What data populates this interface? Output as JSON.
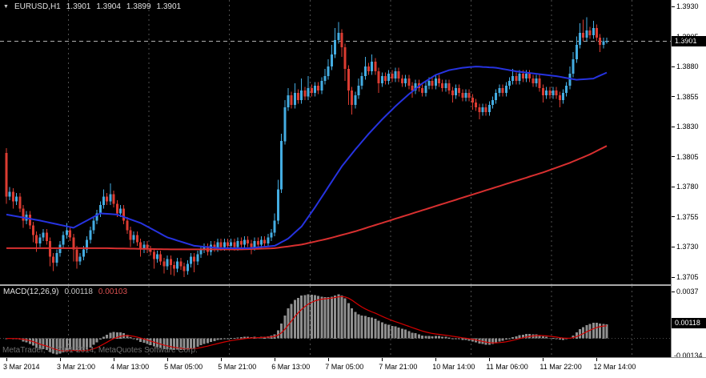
{
  "header": {
    "symbol_timeframe": "EURUSD,H1"
  },
  "icons": {
    "collapse_marker": "▼"
  },
  "watermark": {
    "text": "MetaTrader, © 2001-2014, MetaQuotes Software Corp."
  },
  "colors": {
    "background": "#000000",
    "scale_bg": "#ffffff",
    "scale_text": "#000000",
    "bull": "#44ade2",
    "bear": "#dc3c32",
    "ma_fast": "#2633e0",
    "ma_slow": "#d83030",
    "current_price_line": "#b0b0b0",
    "separator": "#4f4f4f",
    "histogram": "#8f8f8f",
    "signal": "#d40000",
    "highlight_bg": "#000000",
    "highlight_text": "#ffffff",
    "panel_border": "#8c8c8c",
    "watermark": "#6f6f6f",
    "chart_text": "#e2e2e2"
  },
  "chart_data": {
    "type": "candlestick",
    "symbol": "EURUSD",
    "timeframe": "H1",
    "quote": {
      "open": "1.3901",
      "high": "1.3904",
      "low": "1.3899",
      "close": "1.3901"
    },
    "price_axis": {
      "min": 1.3699,
      "max": 1.39353,
      "tick_labels": [
        "1.3930",
        "1.3905",
        "1.3880",
        "1.3855",
        "1.3830",
        "1.3805",
        "1.3780",
        "1.3755",
        "1.3730",
        "1.3705"
      ],
      "current": "1.3901"
    },
    "bars": {
      "first_open": 1.3808,
      "wick_default": 0.0003,
      "closes": [
        1.3772,
        1.3776,
        1.3768,
        1.3772,
        1.3762,
        1.3752,
        1.3757,
        1.3748,
        1.374,
        1.3733,
        1.3738,
        1.3742,
        1.3735,
        1.3722,
        1.3717,
        1.3725,
        1.3732,
        1.374,
        1.3744,
        1.3738,
        1.3728,
        1.3718,
        1.3722,
        1.3728,
        1.3736,
        1.3744,
        1.3752,
        1.3758,
        1.3765,
        1.3772,
        1.3768,
        1.3774,
        1.3766,
        1.3758,
        1.3762,
        1.3752,
        1.3744,
        1.3736,
        1.374,
        1.3734,
        1.3728,
        1.3732,
        1.3728,
        1.3726,
        1.372,
        1.3724,
        1.3718,
        1.3714,
        1.372,
        1.3715,
        1.3712,
        1.3718,
        1.3714,
        1.371,
        1.3716,
        1.3722,
        1.3718,
        1.3724,
        1.3728,
        1.373,
        1.3726,
        1.3732,
        1.3729,
        1.3734,
        1.373,
        1.3734,
        1.3731,
        1.3734,
        1.373,
        1.3735,
        1.3732,
        1.3736,
        1.3733,
        1.373,
        1.3735,
        1.3732,
        1.3736,
        1.3733,
        1.3738,
        1.3742,
        1.3752,
        1.3778,
        1.3818,
        1.3846,
        1.3856,
        1.3848,
        1.3858,
        1.3852,
        1.386,
        1.3855,
        1.3862,
        1.3858,
        1.3864,
        1.386,
        1.3868,
        1.3872,
        1.388,
        1.389,
        1.3902,
        1.3908,
        1.3896,
        1.3878,
        1.386,
        1.3848,
        1.3856,
        1.3864,
        1.3872,
        1.388,
        1.3876,
        1.3884,
        1.3876,
        1.3866,
        1.3872,
        1.3868,
        1.3874,
        1.387,
        1.3876,
        1.387,
        1.3866,
        1.387,
        1.3864,
        1.386,
        1.3866,
        1.3862,
        1.3858,
        1.3864,
        1.3868,
        1.3864,
        1.387,
        1.3866,
        1.3862,
        1.3866,
        1.386,
        1.3856,
        1.3862,
        1.3858,
        1.3854,
        1.3858,
        1.3854,
        1.385,
        1.3846,
        1.3842,
        1.3846,
        1.3842,
        1.3848,
        1.3852,
        1.3858,
        1.3862,
        1.3858,
        1.3864,
        1.3868,
        1.3872,
        1.3868,
        1.3874,
        1.387,
        1.3874,
        1.387,
        1.3866,
        1.387,
        1.3862,
        1.3856,
        1.386,
        1.3856,
        1.386,
        1.3856,
        1.3852,
        1.3858,
        1.3864,
        1.3874,
        1.3886,
        1.3898,
        1.3908,
        1.3904,
        1.391,
        1.3906,
        1.3912,
        1.3904,
        1.3898,
        1.3901,
        1.3901
      ],
      "high_overrides": {
        "0": 1.3812,
        "1": 1.378,
        "18": 1.375,
        "29": 1.3778,
        "31": 1.3783,
        "80": 1.3758,
        "81": 1.3786,
        "82": 1.3824,
        "83": 1.3852,
        "84": 1.3862,
        "86": 1.3866,
        "88": 1.387,
        "90": 1.3872,
        "95": 1.3878,
        "96": 1.3886,
        "97": 1.3898,
        "98": 1.3912,
        "99": 1.3917,
        "105": 1.387,
        "107": 1.3888,
        "109": 1.389,
        "151": 1.3878,
        "168": 1.388,
        "169": 1.3892,
        "170": 1.3905,
        "171": 1.3916,
        "172": 1.3919,
        "173": 1.3921,
        "175": 1.3918,
        "179": 1.3904
      },
      "low_overrides": {
        "0": 1.3766,
        "2": 1.3762,
        "5": 1.3746,
        "8": 1.3734,
        "9": 1.3726,
        "13": 1.3714,
        "14": 1.371,
        "20": 1.3718,
        "21": 1.3712,
        "37": 1.373,
        "40": 1.3722,
        "44": 1.3712,
        "47": 1.3708,
        "49": 1.3707,
        "50": 1.3706,
        "53": 1.3705,
        "56": 1.3709,
        "73": 1.3724,
        "100": 1.3888,
        "101": 1.3868,
        "102": 1.3848,
        "103": 1.384,
        "111": 1.3858,
        "121": 1.3854,
        "133": 1.385,
        "139": 1.3844,
        "141": 1.3836,
        "160": 1.385,
        "165": 1.3846,
        "177": 1.3892,
        "179": 1.3899
      }
    },
    "ma_blue_anchors": [
      [
        0,
        1.3757
      ],
      [
        10,
        1.3752
      ],
      [
        20,
        1.3746
      ],
      [
        28,
        1.3758
      ],
      [
        33,
        1.3757
      ],
      [
        40,
        1.375
      ],
      [
        48,
        1.3738
      ],
      [
        56,
        1.3731
      ],
      [
        64,
        1.3729
      ],
      [
        72,
        1.3729
      ],
      [
        80,
        1.3731
      ],
      [
        84,
        1.3737
      ],
      [
        88,
        1.3747
      ],
      [
        92,
        1.3763
      ],
      [
        96,
        1.378
      ],
      [
        100,
        1.3797
      ],
      [
        104,
        1.3811
      ],
      [
        108,
        1.3824
      ],
      [
        112,
        1.3836
      ],
      [
        116,
        1.3847
      ],
      [
        120,
        1.3857
      ],
      [
        124,
        1.3866
      ],
      [
        128,
        1.3873
      ],
      [
        132,
        1.3877
      ],
      [
        136,
        1.3879
      ],
      [
        140,
        1.388
      ],
      [
        146,
        1.3879
      ],
      [
        152,
        1.3876
      ],
      [
        158,
        1.3874
      ],
      [
        164,
        1.3872
      ],
      [
        170,
        1.3869
      ],
      [
        175,
        1.387
      ],
      [
        179,
        1.3875
      ]
    ],
    "ma_red_anchors": [
      [
        0,
        1.3729
      ],
      [
        30,
        1.3729
      ],
      [
        50,
        1.3728
      ],
      [
        70,
        1.3728
      ],
      [
        80,
        1.3729
      ],
      [
        88,
        1.3732
      ],
      [
        96,
        1.3737
      ],
      [
        104,
        1.3743
      ],
      [
        112,
        1.375
      ],
      [
        120,
        1.3757
      ],
      [
        128,
        1.3764
      ],
      [
        136,
        1.3771
      ],
      [
        144,
        1.3778
      ],
      [
        152,
        1.3785
      ],
      [
        160,
        1.3792
      ],
      [
        168,
        1.38
      ],
      [
        174,
        1.3807
      ],
      [
        179,
        1.3814
      ]
    ],
    "day_separator_bars": [
      19,
      43,
      67,
      91,
      115,
      139,
      163,
      187
    ],
    "time_labels": [
      {
        "text": "3 Mar 2014",
        "bar": 0
      },
      {
        "text": "3 Mar 21:00",
        "bar": 16
      },
      {
        "text": "4 Mar 13:00",
        "bar": 32
      },
      {
        "text": "5 Mar 05:00",
        "bar": 48
      },
      {
        "text": "5 Mar 21:00",
        "bar": 64
      },
      {
        "text": "6 Mar 13:00",
        "bar": 80
      },
      {
        "text": "7 Mar 05:00",
        "bar": 96
      },
      {
        "text": "7 Mar 21:00",
        "bar": 112
      },
      {
        "text": "10 Mar 14:00",
        "bar": 128
      },
      {
        "text": "11 Mar 06:00",
        "bar": 144
      },
      {
        "text": "11 Mar 22:00",
        "bar": 160
      },
      {
        "text": "12 Mar 14:00",
        "bar": 176
      }
    ],
    "macd": {
      "label": "MACD(12,26,9)",
      "value_main": "0.00118",
      "value_signal": "0.00103",
      "params": {
        "fast": 12,
        "slow": 26,
        "signal": 9
      },
      "axis": {
        "min": -0.00147,
        "max": 0.00415,
        "top_label": "0.0037",
        "bottom_label": "-0.00134",
        "current_label": "0.00118"
      }
    }
  }
}
